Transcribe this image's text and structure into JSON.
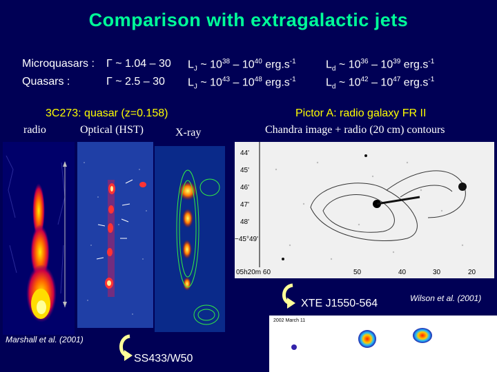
{
  "slide": {
    "title": "Comparison with extragalactic jets",
    "microquasars": {
      "label": "Microquasars :",
      "gamma": "Γ ~ 1.04 – 30",
      "lj_prefix": "L",
      "lj_sub": "J",
      "lj_text": " ~ 10",
      "lj_e1": "38",
      "lj_mid": " – 10",
      "lj_e2": "40",
      "lj_unit": " erg.s",
      "lj_unit_exp": "-1",
      "ld_prefix": "L",
      "ld_sub": "d",
      "ld_text": " ~ 10",
      "ld_e1": "36",
      "ld_mid": " – 10",
      "ld_e2": "39",
      "ld_unit": " erg.s",
      "ld_unit_exp": "-1"
    },
    "quasars": {
      "label": "Quasars :",
      "gamma": "Γ ~ 2.5 – 30",
      "lj_prefix": "L",
      "lj_sub": "J",
      "lj_text": " ~ 10",
      "lj_e1": "43",
      "lj_mid": " – 10",
      "lj_e2": "48",
      "lj_unit": " erg.s",
      "lj_unit_exp": "-1",
      "ld_prefix": "L",
      "ld_sub": "d",
      "ld_text": " ~ 10",
      "ld_e1": "42",
      "ld_mid": " – 10",
      "ld_e2": "47",
      "ld_unit": " erg.s",
      "ld_unit_exp": "-1"
    },
    "left_panel": {
      "heading": "3C273: quasar (z=0.158)",
      "cap_radio": "radio",
      "cap_optical": "Optical (HST)",
      "cap_xray": "X-ray",
      "credit": "Marshall et al. (2001)"
    },
    "right_panel": {
      "heading": "Pictor A: radio galaxy FR II",
      "subheading": "Chandra image + radio (20 cm) contours",
      "dec_ticks": [
        "44'",
        "45'",
        "46'",
        "47'",
        "48'",
        "−45°49'"
      ],
      "ra_ticks": [
        "05h20m 60",
        "50",
        "40",
        "30",
        "20"
      ],
      "credit": "Wilson et al. (2001)"
    },
    "xte": {
      "label": "XTE J1550-564",
      "inset_title": "2002 March 11"
    },
    "ss433": {
      "label": "SS433/W50"
    },
    "colors": {
      "background": "#000055",
      "title": "#00ff99",
      "heading": "#ffff00",
      "arrow": "#ffff99"
    }
  }
}
